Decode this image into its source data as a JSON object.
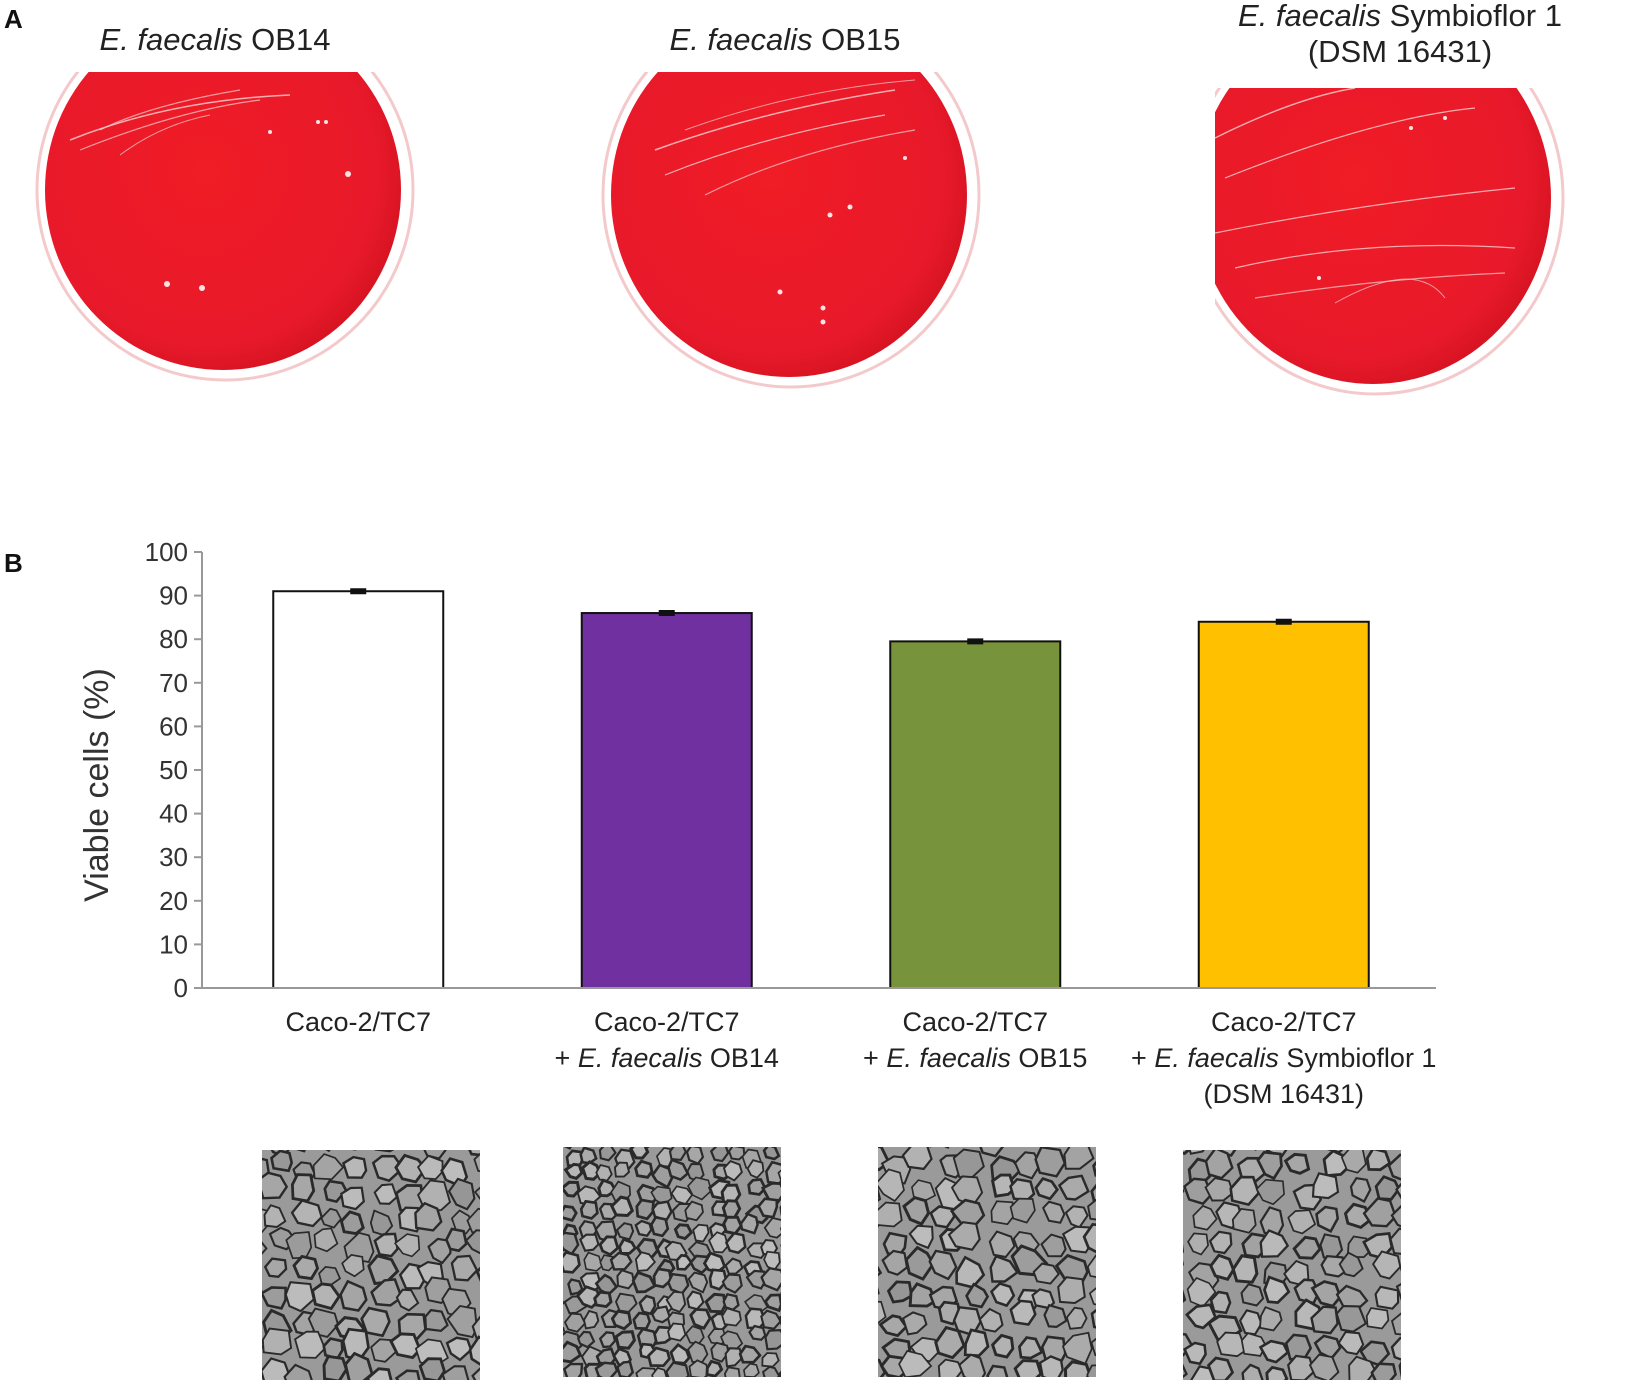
{
  "panels": {
    "a_label": "A",
    "b_label": "B"
  },
  "plates": [
    {
      "species": "E. faecalis",
      "strain": "OB14",
      "line2": ""
    },
    {
      "species": "E. faecalis",
      "strain": "OB15",
      "line2": ""
    },
    {
      "species": "E. faecalis",
      "strain": "Symbioflor 1",
      "line2": "(DSM 16431)"
    }
  ],
  "colors": {
    "agar": "#ec1c2a",
    "agar_dark": "#c9141f",
    "bar_control": "#ffffff",
    "bar_ob14": "#7030a0",
    "bar_ob15": "#77933c",
    "bar_symbioflor": "#ffc000"
  },
  "chart_data": {
    "type": "bar",
    "title": "",
    "xlabel": "",
    "ylabel": "Viable cells (%)",
    "ylim": [
      0,
      100
    ],
    "yticks": [
      0,
      10,
      20,
      30,
      40,
      50,
      60,
      70,
      80,
      90,
      100
    ],
    "categories": [
      "Caco-2/TC7",
      "Caco-2/TC7 + E. faecalis OB14",
      "Caco-2/TC7 + E. faecalis OB15",
      "Caco-2/TC7 + E. faecalis Symbioflor 1 (DSM 16431)"
    ],
    "category_lines": [
      {
        "line1": "Caco-2/TC7",
        "prefix": "",
        "species": "",
        "strain": "",
        "line3": ""
      },
      {
        "line1": "Caco-2/TC7",
        "prefix": "+ ",
        "species": "E. faecalis",
        "strain": " OB14",
        "line3": ""
      },
      {
        "line1": "Caco-2/TC7",
        "prefix": "+ ",
        "species": "E. faecalis",
        "strain": " OB15",
        "line3": ""
      },
      {
        "line1": "Caco-2/TC7",
        "prefix": "+ ",
        "species": "E. faecalis",
        "strain": " Symbioflor 1",
        "line3": "(DSM 16431)"
      }
    ],
    "values": [
      91,
      86,
      79.5,
      84
    ],
    "errors": [
      0.4,
      0.4,
      0.4,
      0.4
    ],
    "bar_colors": [
      "#ffffff",
      "#7030a0",
      "#77933c",
      "#ffc000"
    ],
    "grid": false,
    "legend": "none"
  }
}
